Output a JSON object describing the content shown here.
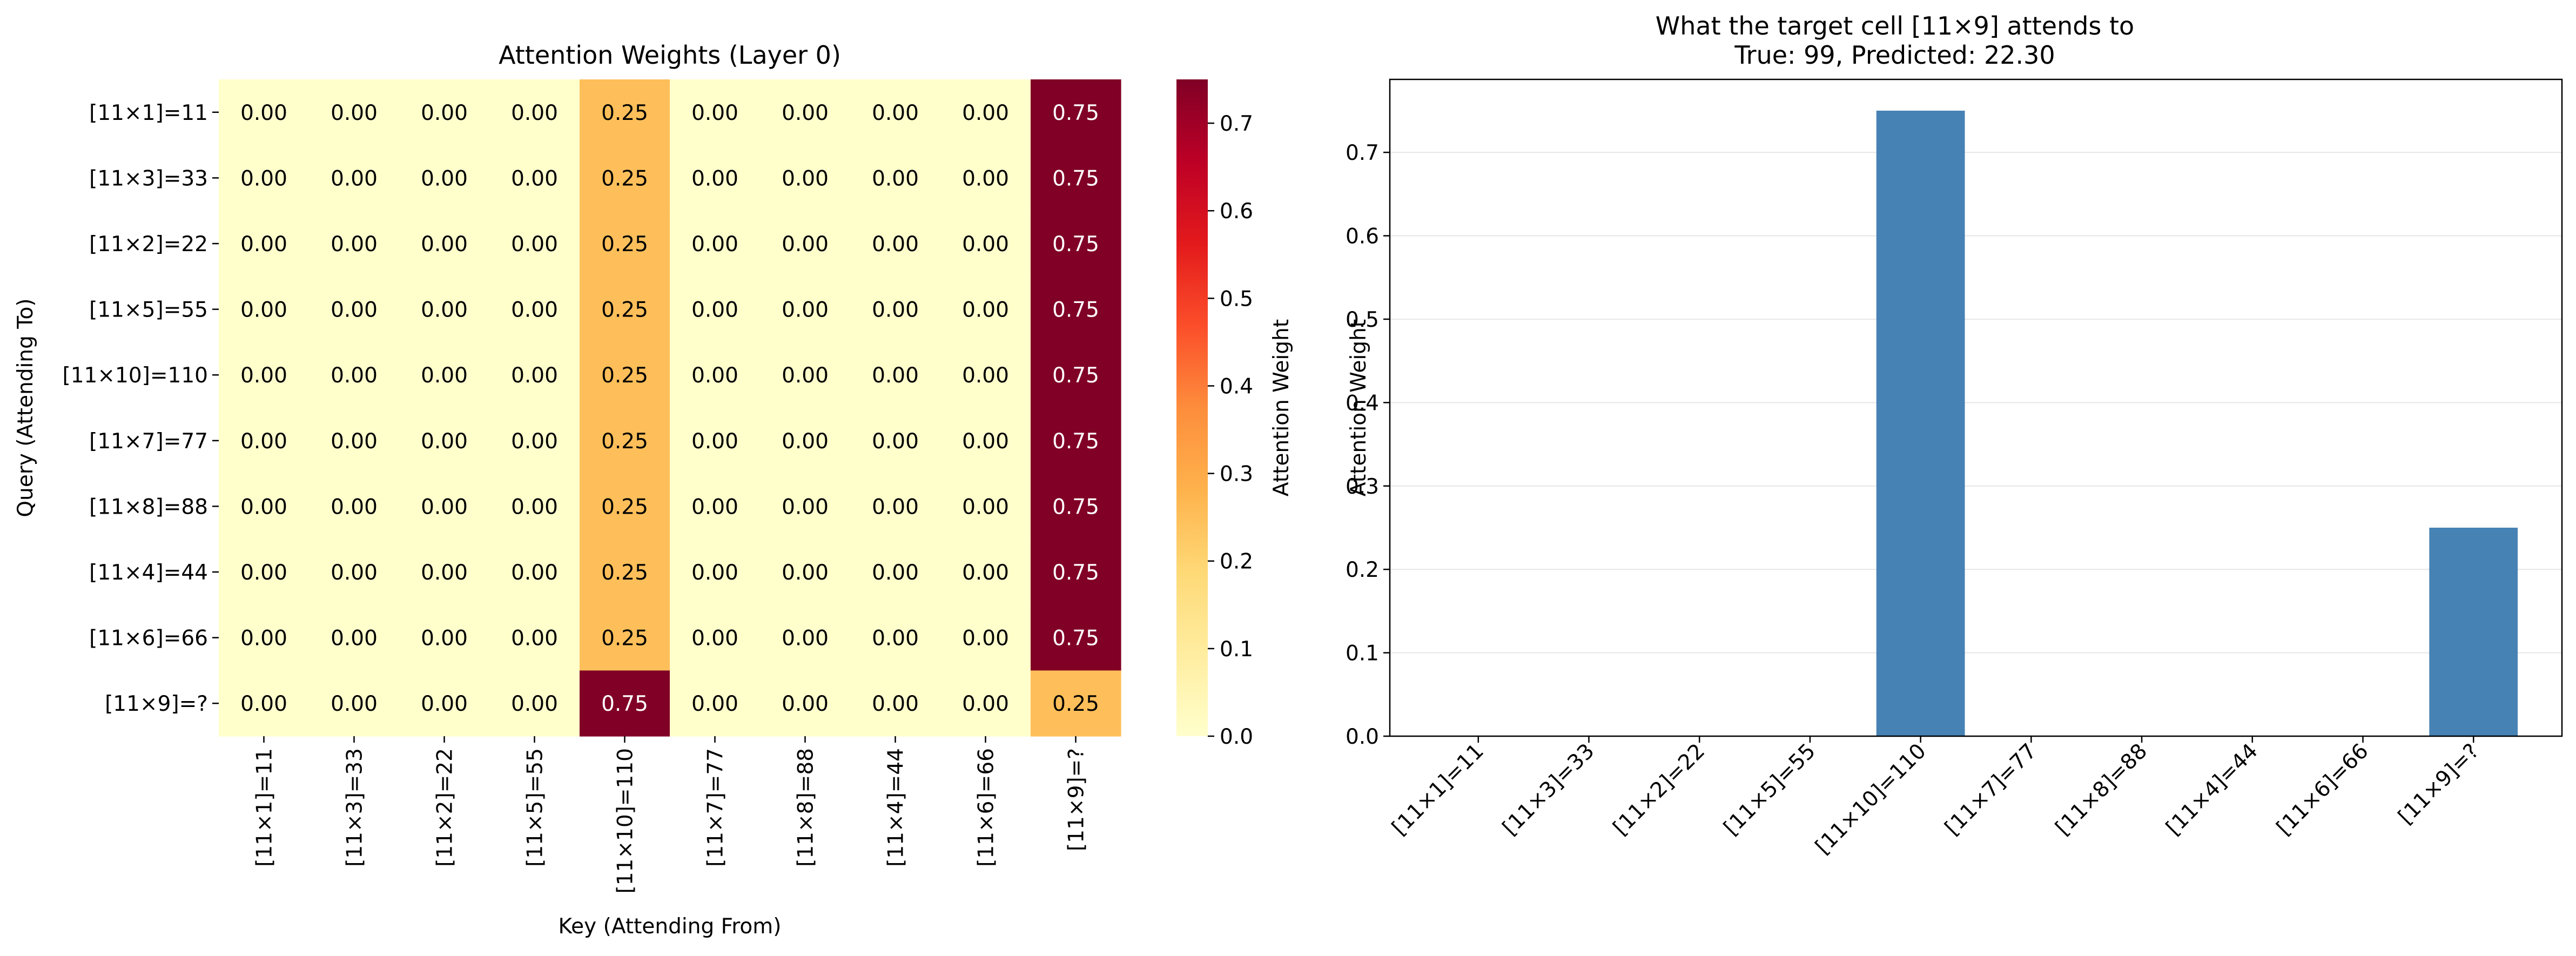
{
  "chart_data": [
    {
      "type": "heatmap",
      "title": "Attention Weights (Layer 0)",
      "xlabel": "Key (Attending From)",
      "ylabel": "Query (Attending To)",
      "row_labels": [
        "[11×1]=11",
        "[11×3]=33",
        "[11×2]=22",
        "[11×5]=55",
        "[11×10]=110",
        "[11×7]=77",
        "[11×8]=88",
        "[11×4]=44",
        "[11×6]=66",
        "[11×9]=?"
      ],
      "col_labels": [
        "[11×1]=11",
        "[11×3]=33",
        "[11×2]=22",
        "[11×5]=55",
        "[11×10]=110",
        "[11×7]=77",
        "[11×8]=88",
        "[11×4]=44",
        "[11×6]=66",
        "[11×9]=?"
      ],
      "values": [
        [
          0.0,
          0.0,
          0.0,
          0.0,
          0.25,
          0.0,
          0.0,
          0.0,
          0.0,
          0.75
        ],
        [
          0.0,
          0.0,
          0.0,
          0.0,
          0.25,
          0.0,
          0.0,
          0.0,
          0.0,
          0.75
        ],
        [
          0.0,
          0.0,
          0.0,
          0.0,
          0.25,
          0.0,
          0.0,
          0.0,
          0.0,
          0.75
        ],
        [
          0.0,
          0.0,
          0.0,
          0.0,
          0.25,
          0.0,
          0.0,
          0.0,
          0.0,
          0.75
        ],
        [
          0.0,
          0.0,
          0.0,
          0.0,
          0.25,
          0.0,
          0.0,
          0.0,
          0.0,
          0.75
        ],
        [
          0.0,
          0.0,
          0.0,
          0.0,
          0.25,
          0.0,
          0.0,
          0.0,
          0.0,
          0.75
        ],
        [
          0.0,
          0.0,
          0.0,
          0.0,
          0.25,
          0.0,
          0.0,
          0.0,
          0.0,
          0.75
        ],
        [
          0.0,
          0.0,
          0.0,
          0.0,
          0.25,
          0.0,
          0.0,
          0.0,
          0.0,
          0.75
        ],
        [
          0.0,
          0.0,
          0.0,
          0.0,
          0.25,
          0.0,
          0.0,
          0.0,
          0.0,
          0.75
        ],
        [
          0.0,
          0.0,
          0.0,
          0.0,
          0.75,
          0.0,
          0.0,
          0.0,
          0.0,
          0.25
        ]
      ],
      "colorbar": {
        "label": "Attention Weight",
        "range": [
          0,
          0.75
        ],
        "ticks": [
          0.0,
          0.1,
          0.2,
          0.3,
          0.4,
          0.5,
          0.6,
          0.7
        ],
        "colormap": "YlOrRd",
        "stops": [
          "#ffffcc",
          "#ffeda0",
          "#fed976",
          "#feb24c",
          "#fd8d3c",
          "#fc4e2a",
          "#e31a1c",
          "#bd0026",
          "#800026"
        ]
      }
    },
    {
      "type": "bar",
      "title": "What the target cell [11×9] attends to",
      "subtitle": "True: 99, Predicted: 22.30",
      "xlabel": "",
      "ylabel": "Attention Weight",
      "categories": [
        "[11×1]=11",
        "[11×3]=33",
        "[11×2]=22",
        "[11×5]=55",
        "[11×10]=110",
        "[11×7]=77",
        "[11×8]=88",
        "[11×4]=44",
        "[11×6]=66",
        "[11×9]=?"
      ],
      "values": [
        0,
        0,
        0,
        0,
        0.75,
        0,
        0,
        0,
        0,
        0.25
      ],
      "ylim": [
        0,
        0.7875
      ],
      "yticks": [
        0.0,
        0.1,
        0.2,
        0.3,
        0.4,
        0.5,
        0.6,
        0.7
      ],
      "grid": "y",
      "bar_color": "#4682b4"
    }
  ]
}
